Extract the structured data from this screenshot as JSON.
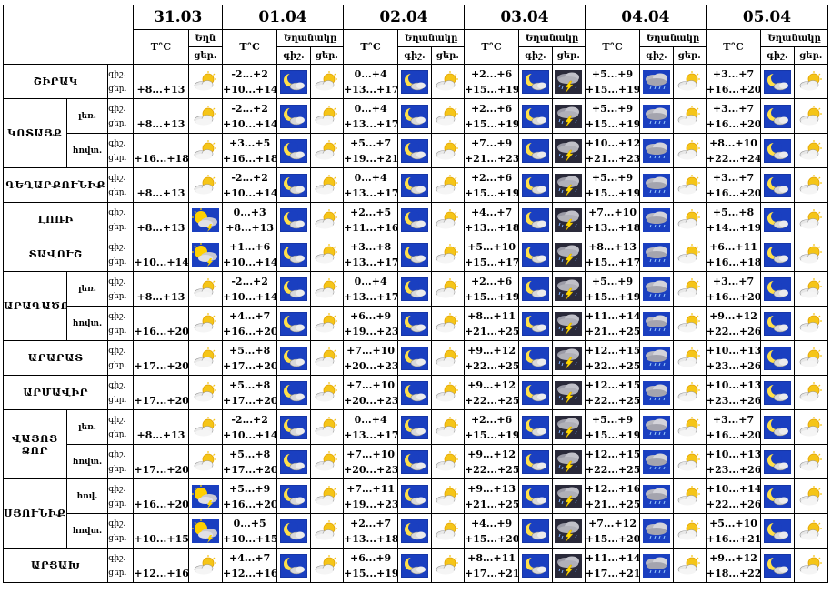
{
  "dates": [
    "31.03",
    "01.04",
    "02.04",
    "03.04",
    "04.04",
    "05.04"
  ],
  "headers": {
    "temp": "T°C",
    "weather": "Եղանակը",
    "weather_short": "Եղն",
    "night": "գիշ.",
    "day": "ցեր."
  },
  "regions": [
    {
      "name": "ՇԻՐԱԿ",
      "rows": [
        {
          "sub": "",
          "t31": "+8...+13",
          "d31": "partly-cloudy-icon",
          "days": [
            {
              "n": "-2...+2",
              "d": "+10...+14",
              "ni": "moon-cloud-icon",
              "di": "partly-cloudy-icon"
            },
            {
              "n": "0...+4",
              "d": "+13...+17",
              "ni": "moon-cloud-icon",
              "di": "partly-cloudy-icon"
            },
            {
              "n": "+2...+6",
              "d": "+15...+19",
              "ni": "moon-cloud-icon",
              "di": "thunderstorm-icon"
            },
            {
              "n": "+5...+9",
              "d": "+15...+19",
              "ni": "rain-cloud-icon",
              "di": "partly-cloudy-icon"
            },
            {
              "n": "+3...+7",
              "d": "+16...+20",
              "ni": "moon-cloud-icon",
              "di": "partly-cloudy-icon"
            }
          ]
        }
      ]
    },
    {
      "name": "ԿՈՏԱՅՔ",
      "rows": [
        {
          "sub": "լեռ.",
          "t31": "+8...+13",
          "d31": "partly-cloudy-icon",
          "days": [
            {
              "n": "-2...+2",
              "d": "+10...+14",
              "ni": "moon-cloud-icon",
              "di": "partly-cloudy-icon"
            },
            {
              "n": "0...+4",
              "d": "+13...+17",
              "ni": "moon-cloud-icon",
              "di": "partly-cloudy-icon"
            },
            {
              "n": "+2...+6",
              "d": "+15...+19",
              "ni": "moon-cloud-icon",
              "di": "thunderstorm-icon"
            },
            {
              "n": "+5...+9",
              "d": "+15...+19",
              "ni": "rain-cloud-icon",
              "di": "partly-cloudy-icon"
            },
            {
              "n": "+3...+7",
              "d": "+16...+20",
              "ni": "moon-cloud-icon",
              "di": "partly-cloudy-icon"
            }
          ]
        },
        {
          "sub": "հովտ.",
          "t31": "+16...+18",
          "d31": "partly-cloudy-icon",
          "days": [
            {
              "n": "+3...+5",
              "d": "+16...+18",
              "ni": "moon-cloud-icon",
              "di": "partly-cloudy-icon"
            },
            {
              "n": "+5...+7",
              "d": "+19...+21",
              "ni": "moon-cloud-icon",
              "di": "partly-cloudy-icon"
            },
            {
              "n": "+7...+9",
              "d": "+21...+23",
              "ni": "moon-cloud-icon",
              "di": "thunderstorm-icon"
            },
            {
              "n": "+10...+12",
              "d": "+21...+23",
              "ni": "rain-cloud-icon",
              "di": "partly-cloudy-icon"
            },
            {
              "n": "+8...+10",
              "d": "+22...+24",
              "ni": "moon-cloud-icon",
              "di": "partly-cloudy-icon"
            }
          ]
        }
      ]
    },
    {
      "name": "ԳԵՂԱՐՔՈՒՆԻՔ",
      "rows": [
        {
          "sub": "",
          "t31": "+8...+13",
          "d31": "partly-cloudy-icon",
          "days": [
            {
              "n": "-2...+2",
              "d": "+10...+14",
              "ni": "moon-cloud-icon",
              "di": "partly-cloudy-icon"
            },
            {
              "n": "0...+4",
              "d": "+13...+17",
              "ni": "moon-cloud-icon",
              "di": "partly-cloudy-icon"
            },
            {
              "n": "+2...+6",
              "d": "+15...+19",
              "ni": "moon-cloud-icon",
              "di": "thunderstorm-icon"
            },
            {
              "n": "+5...+9",
              "d": "+15...+19",
              "ni": "rain-cloud-icon",
              "di": "partly-cloudy-icon"
            },
            {
              "n": "+3...+7",
              "d": "+16...+20",
              "ni": "moon-cloud-icon",
              "di": "partly-cloudy-icon"
            }
          ]
        }
      ]
    },
    {
      "name": "ԼՈՌԻ",
      "rows": [
        {
          "sub": "",
          "t31": "+8...+13",
          "d31": "sun-storm-icon",
          "days": [
            {
              "n": "0...+3",
              "d": "+8...+13",
              "ni": "moon-cloud-icon",
              "di": "partly-cloudy-icon"
            },
            {
              "n": "+2...+5",
              "d": "+11...+16",
              "ni": "moon-cloud-icon",
              "di": "partly-cloudy-icon"
            },
            {
              "n": "+4...+7",
              "d": "+13...+18",
              "ni": "moon-cloud-icon",
              "di": "thunderstorm-icon"
            },
            {
              "n": "+7...+10",
              "d": "+13...+18",
              "ni": "rain-cloud-icon",
              "di": "partly-cloudy-icon"
            },
            {
              "n": "+5...+8",
              "d": "+14...+19",
              "ni": "moon-cloud-icon",
              "di": "partly-cloudy-icon"
            }
          ]
        }
      ]
    },
    {
      "name": "ՏԱՎՈՒՇ",
      "rows": [
        {
          "sub": "",
          "t31": "+10...+14",
          "d31": "sun-storm-icon",
          "days": [
            {
              "n": "+1...+6",
              "d": "+10...+14",
              "ni": "moon-cloud-icon",
              "di": "partly-cloudy-icon"
            },
            {
              "n": "+3...+8",
              "d": "+13...+17",
              "ni": "moon-cloud-icon",
              "di": "partly-cloudy-icon"
            },
            {
              "n": "+5...+10",
              "d": "+15...+17",
              "ni": "moon-cloud-icon",
              "di": "thunderstorm-icon"
            },
            {
              "n": "+8...+13",
              "d": "+15...+17",
              "ni": "rain-cloud-icon",
              "di": "partly-cloudy-icon"
            },
            {
              "n": "+6...+11",
              "d": "+16...+18",
              "ni": "moon-cloud-icon",
              "di": "partly-cloudy-icon"
            }
          ]
        }
      ]
    },
    {
      "name": "ԱՐԱԳԱԾՈՏՆ",
      "rows": [
        {
          "sub": "լեռ.",
          "t31": "+8...+13",
          "d31": "partly-cloudy-icon",
          "days": [
            {
              "n": "-2...+2",
              "d": "+10...+14",
              "ni": "moon-cloud-icon",
              "di": "partly-cloudy-icon"
            },
            {
              "n": "0...+4",
              "d": "+13...+17",
              "ni": "moon-cloud-icon",
              "di": "partly-cloudy-icon"
            },
            {
              "n": "+2...+6",
              "d": "+15...+19",
              "ni": "moon-cloud-icon",
              "di": "thunderstorm-icon"
            },
            {
              "n": "+5...+9",
              "d": "+15...+19",
              "ni": "rain-cloud-icon",
              "di": "partly-cloudy-icon"
            },
            {
              "n": "+3...+7",
              "d": "+16...+20",
              "ni": "moon-cloud-icon",
              "di": "partly-cloudy-icon"
            }
          ]
        },
        {
          "sub": "հովտ.",
          "t31": "+16...+20",
          "d31": "partly-cloudy-icon",
          "days": [
            {
              "n": "+4...+7",
              "d": "+16...+20",
              "ni": "moon-cloud-icon",
              "di": "partly-cloudy-icon"
            },
            {
              "n": "+6...+9",
              "d": "+19...+23",
              "ni": "moon-cloud-icon",
              "di": "partly-cloudy-icon"
            },
            {
              "n": "+8...+11",
              "d": "+21...+25",
              "ni": "moon-cloud-icon",
              "di": "thunderstorm-icon"
            },
            {
              "n": "+11...+14",
              "d": "+21...+25",
              "ni": "rain-cloud-icon",
              "di": "partly-cloudy-icon"
            },
            {
              "n": "+9...+12",
              "d": "+22...+26",
              "ni": "moon-cloud-icon",
              "di": "partly-cloudy-icon"
            }
          ]
        }
      ]
    },
    {
      "name": "ԱՐԱՐԱՏ",
      "rows": [
        {
          "sub": "",
          "t31": "+17...+20",
          "d31": "partly-cloudy-icon",
          "days": [
            {
              "n": "+5...+8",
              "d": "+17...+20",
              "ni": "moon-cloud-icon",
              "di": "partly-cloudy-icon"
            },
            {
              "n": "+7...+10",
              "d": "+20...+23",
              "ni": "moon-cloud-icon",
              "di": "partly-cloudy-icon"
            },
            {
              "n": "+9...+12",
              "d": "+22...+25",
              "ni": "moon-cloud-icon",
              "di": "thunderstorm-icon"
            },
            {
              "n": "+12...+15",
              "d": "+22...+25",
              "ni": "rain-cloud-icon",
              "di": "partly-cloudy-icon"
            },
            {
              "n": "+10...+13",
              "d": "+23...+26",
              "ni": "moon-cloud-icon",
              "di": "partly-cloudy-icon"
            }
          ]
        }
      ]
    },
    {
      "name": "ԱՐՄԱՎԻՐ",
      "rows": [
        {
          "sub": "",
          "t31": "+17...+20",
          "d31": "partly-cloudy-icon",
          "days": [
            {
              "n": "+5...+8",
              "d": "+17...+20",
              "ni": "moon-cloud-icon",
              "di": "partly-cloudy-icon"
            },
            {
              "n": "+7...+10",
              "d": "+20...+23",
              "ni": "moon-cloud-icon",
              "di": "partly-cloudy-icon"
            },
            {
              "n": "+9...+12",
              "d": "+22...+25",
              "ni": "moon-cloud-icon",
              "di": "thunderstorm-icon"
            },
            {
              "n": "+12...+15",
              "d": "+22...+25",
              "ni": "rain-cloud-icon",
              "di": "partly-cloudy-icon"
            },
            {
              "n": "+10...+13",
              "d": "+23...+26",
              "ni": "moon-cloud-icon",
              "di": "partly-cloudy-icon"
            }
          ]
        }
      ]
    },
    {
      "name": "ՎԱՅՈՑ ՁՈՐ",
      "rows": [
        {
          "sub": "լեռ.",
          "t31": "+8...+13",
          "d31": "partly-cloudy-icon",
          "days": [
            {
              "n": "-2...+2",
              "d": "+10...+14",
              "ni": "moon-cloud-icon",
              "di": "partly-cloudy-icon"
            },
            {
              "n": "0...+4",
              "d": "+13...+17",
              "ni": "moon-cloud-icon",
              "di": "partly-cloudy-icon"
            },
            {
              "n": "+2...+6",
              "d": "+15...+19",
              "ni": "moon-cloud-icon",
              "di": "thunderstorm-icon"
            },
            {
              "n": "+5...+9",
              "d": "+15...+19",
              "ni": "rain-cloud-icon",
              "di": "partly-cloudy-icon"
            },
            {
              "n": "+3...+7",
              "d": "+16...+20",
              "ni": "moon-cloud-icon",
              "di": "partly-cloudy-icon"
            }
          ]
        },
        {
          "sub": "հովտ.",
          "t31": "+17...+20",
          "d31": "partly-cloudy-icon",
          "days": [
            {
              "n": "+5...+8",
              "d": "+17...+20",
              "ni": "moon-cloud-icon",
              "di": "partly-cloudy-icon"
            },
            {
              "n": "+7...+10",
              "d": "+20...+23",
              "ni": "moon-cloud-icon",
              "di": "partly-cloudy-icon"
            },
            {
              "n": "+9...+12",
              "d": "+22...+25",
              "ni": "moon-cloud-icon",
              "di": "thunderstorm-icon"
            },
            {
              "n": "+12...+15",
              "d": "+22...+25",
              "ni": "rain-cloud-icon",
              "di": "partly-cloudy-icon"
            },
            {
              "n": "+10...+13",
              "d": "+23...+26",
              "ni": "moon-cloud-icon",
              "di": "partly-cloudy-icon"
            }
          ]
        }
      ]
    },
    {
      "name": "ՍՅՈՒՆԻՔ",
      "rows": [
        {
          "sub": "հով.",
          "t31": "+16...+20",
          "d31": "sun-storm-icon",
          "days": [
            {
              "n": "+5...+9",
              "d": "+16...+20",
              "ni": "moon-cloud-icon",
              "di": "partly-cloudy-icon"
            },
            {
              "n": "+7...+11",
              "d": "+19...+23",
              "ni": "moon-cloud-icon",
              "di": "partly-cloudy-icon"
            },
            {
              "n": "+9...+13",
              "d": "+21...+25",
              "ni": "moon-cloud-icon",
              "di": "thunderstorm-icon"
            },
            {
              "n": "+12...+16",
              "d": "+21...+25",
              "ni": "rain-cloud-icon",
              "di": "partly-cloudy-icon"
            },
            {
              "n": "+10...+14",
              "d": "+22...+26",
              "ni": "moon-cloud-icon",
              "di": "partly-cloudy-icon"
            }
          ]
        },
        {
          "sub": "հովտ.",
          "t31": "+10...+15",
          "d31": "sun-storm-icon",
          "days": [
            {
              "n": "0...+5",
              "d": "+10...+15",
              "ni": "moon-cloud-icon",
              "di": "partly-cloudy-icon"
            },
            {
              "n": "+2...+7",
              "d": "+13...+18",
              "ni": "moon-cloud-icon",
              "di": "partly-cloudy-icon"
            },
            {
              "n": "+4...+9",
              "d": "+15...+20",
              "ni": "moon-cloud-icon",
              "di": "thunderstorm-icon"
            },
            {
              "n": "+7...+12",
              "d": "+15...+20",
              "ni": "rain-cloud-icon",
              "di": "partly-cloudy-icon"
            },
            {
              "n": "+5...+10",
              "d": "+16...+21",
              "ni": "moon-cloud-icon",
              "di": "partly-cloudy-icon"
            }
          ]
        }
      ]
    },
    {
      "name": "ԱՐՑԱԽ",
      "rows": [
        {
          "sub": "",
          "t31": "+12...+16",
          "d31": "partly-cloudy-icon",
          "days": [
            {
              "n": "+4...+7",
              "d": "+12...+16",
              "ni": "moon-cloud-icon",
              "di": "partly-cloudy-icon"
            },
            {
              "n": "+6...+9",
              "d": "+15...+19",
              "ni": "moon-cloud-icon",
              "di": "partly-cloudy-icon"
            },
            {
              "n": "+8...+11",
              "d": "+17...+21",
              "ni": "moon-cloud-icon",
              "di": "thunderstorm-icon"
            },
            {
              "n": "+11...+14",
              "d": "+17...+21",
              "ni": "rain-cloud-icon",
              "di": "partly-cloudy-icon"
            },
            {
              "n": "+9...+12",
              "d": "+18...+22",
              "ni": "moon-cloud-icon",
              "di": "partly-cloudy-icon"
            }
          ]
        }
      ]
    }
  ]
}
